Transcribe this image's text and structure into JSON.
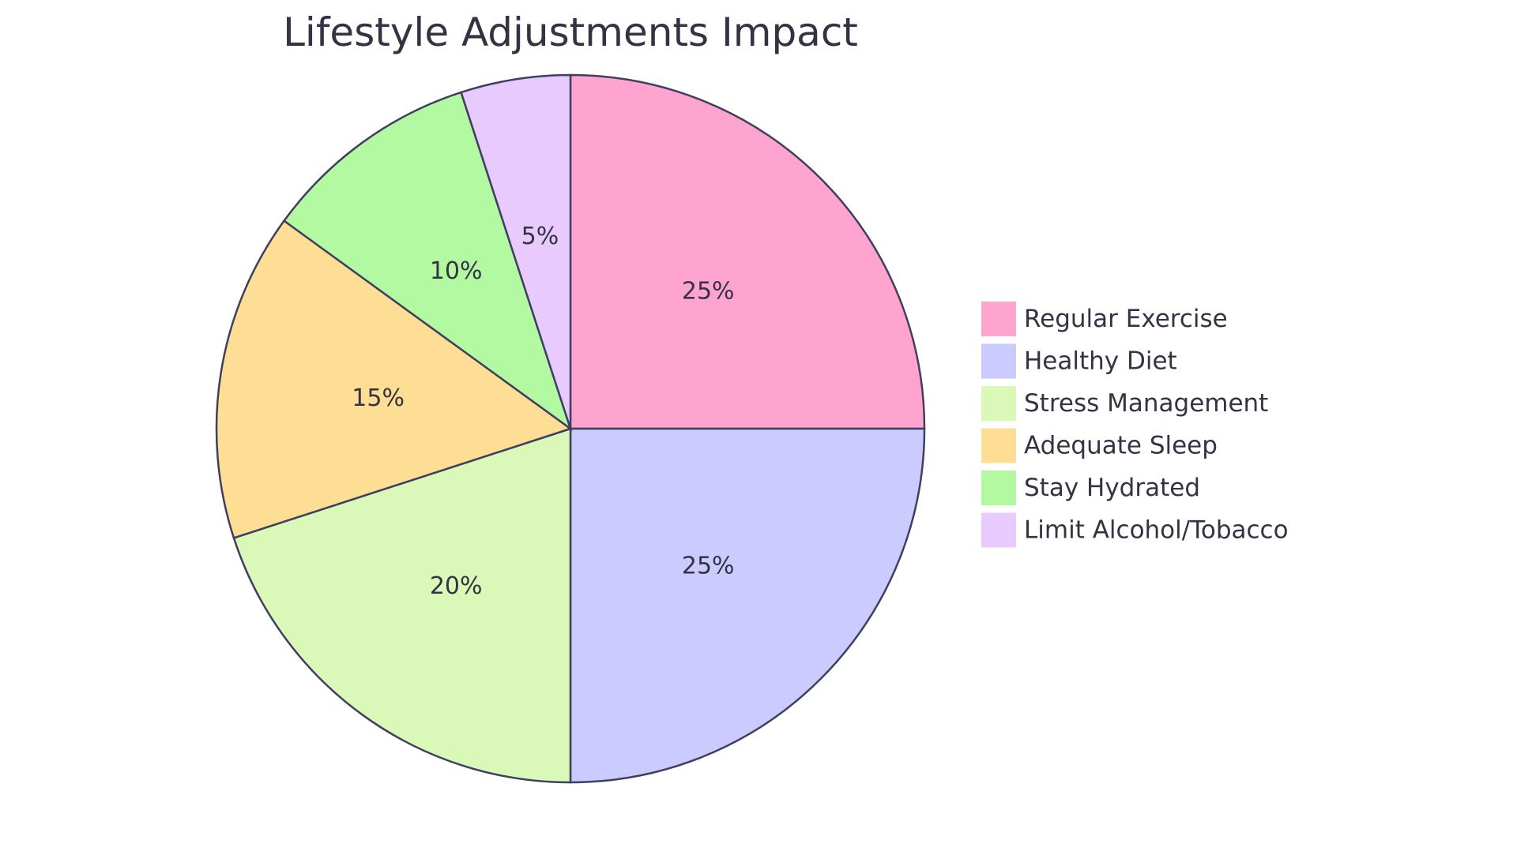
{
  "chart_data": {
    "type": "pie",
    "title": "Lifestyle Adjustments Impact",
    "start_angle": "12 o'clock",
    "direction": "clockwise",
    "legend_position": "right",
    "stroke_color": "#3f3f5f",
    "text_color": "#333344",
    "slices": [
      {
        "label": "Regular Exercise",
        "value": 25,
        "display": "25%",
        "color": "#ffa3cf"
      },
      {
        "label": "Healthy Diet",
        "value": 25,
        "display": "25%",
        "color": "#cbcbff"
      },
      {
        "label": "Stress Management",
        "value": 20,
        "display": "20%",
        "color": "#daf9b9"
      },
      {
        "label": "Adequate Sleep",
        "value": 15,
        "display": "15%",
        "color": "#fedd95"
      },
      {
        "label": "Stay Hydrated",
        "value": 10,
        "display": "10%",
        "color": "#b3f9a1"
      },
      {
        "label": "Limit Alcohol/Tobacco",
        "value": 5,
        "display": "5%",
        "color": "#e8cafe"
      }
    ]
  }
}
